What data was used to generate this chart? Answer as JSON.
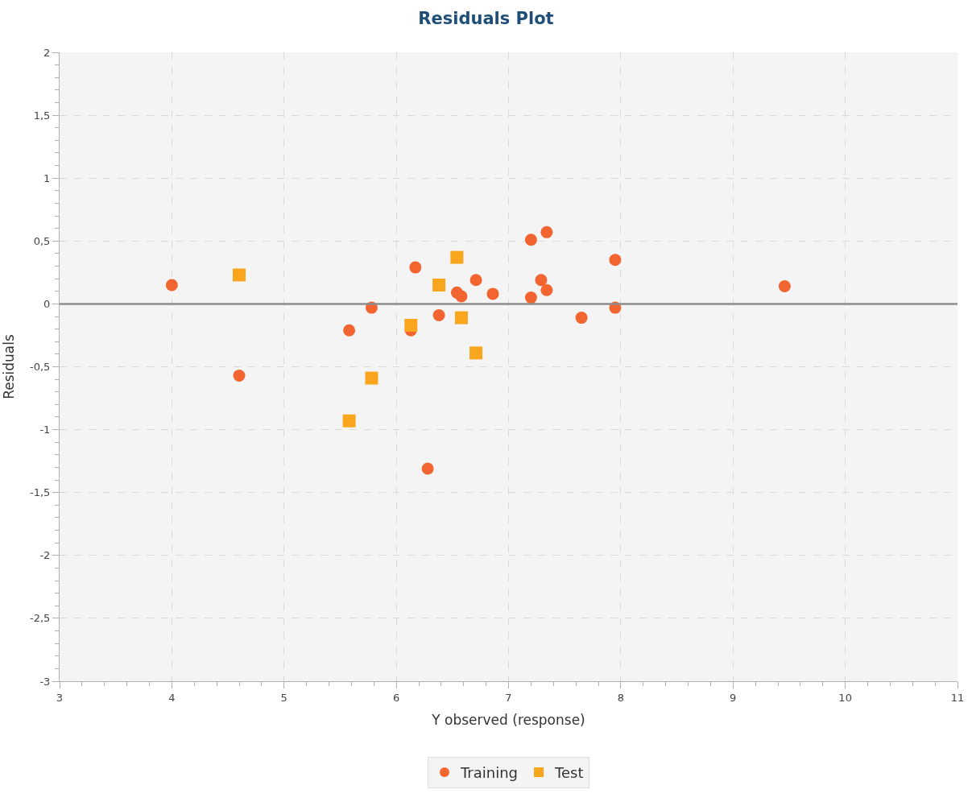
{
  "chart_data": {
    "type": "scatter",
    "title": "Residuals Plot",
    "xlabel": "Y observed (response)",
    "ylabel": "Residuals",
    "series": [
      {
        "name": "Training",
        "color": "#f26530",
        "marker": "circle",
        "x": [
          4.0,
          4.6,
          5.58,
          5.78,
          6.13,
          6.17,
          6.28,
          6.38,
          6.54,
          6.58,
          6.71,
          6.86,
          7.2,
          7.2,
          7.29,
          7.34,
          7.34,
          7.65,
          7.95,
          7.95,
          9.46
        ],
        "values": [
          0.15,
          -0.57,
          -0.21,
          -0.03,
          -0.21,
          0.29,
          -1.31,
          -0.09,
          0.09,
          0.06,
          0.19,
          0.08,
          0.51,
          0.05,
          0.19,
          0.57,
          0.11,
          -0.11,
          0.35,
          -0.03,
          0.14
        ]
      },
      {
        "name": "Test",
        "color": "#f9a61e",
        "marker": "square",
        "x": [
          4.6,
          5.58,
          5.78,
          6.13,
          6.38,
          6.54,
          6.58,
          6.71
        ],
        "values": [
          0.23,
          -0.93,
          -0.59,
          -0.17,
          0.15,
          0.37,
          -0.11,
          -0.39
        ]
      }
    ],
    "xlim": [
      3,
      11
    ],
    "xticks": [
      3,
      4,
      5,
      6,
      7,
      8,
      9,
      10,
      11
    ],
    "ylim": [
      -3,
      2
    ],
    "yticks": [
      -3,
      {
        "value": -2.5,
        "label": "-2,5"
      },
      -2,
      {
        "value": -1.5,
        "label": "-1,5"
      },
      -1,
      {
        "value": -0.5,
        "label": "-0,5"
      },
      0,
      {
        "value": 0.5,
        "label": "0,5"
      },
      1,
      {
        "value": 1.5,
        "label": "1,5"
      },
      2
    ],
    "ref_lines": [
      {
        "axis": "y",
        "value": 0,
        "color": "#8c8c8c",
        "line_style": "solid"
      }
    ],
    "grid": true,
    "legend": "bottom"
  }
}
